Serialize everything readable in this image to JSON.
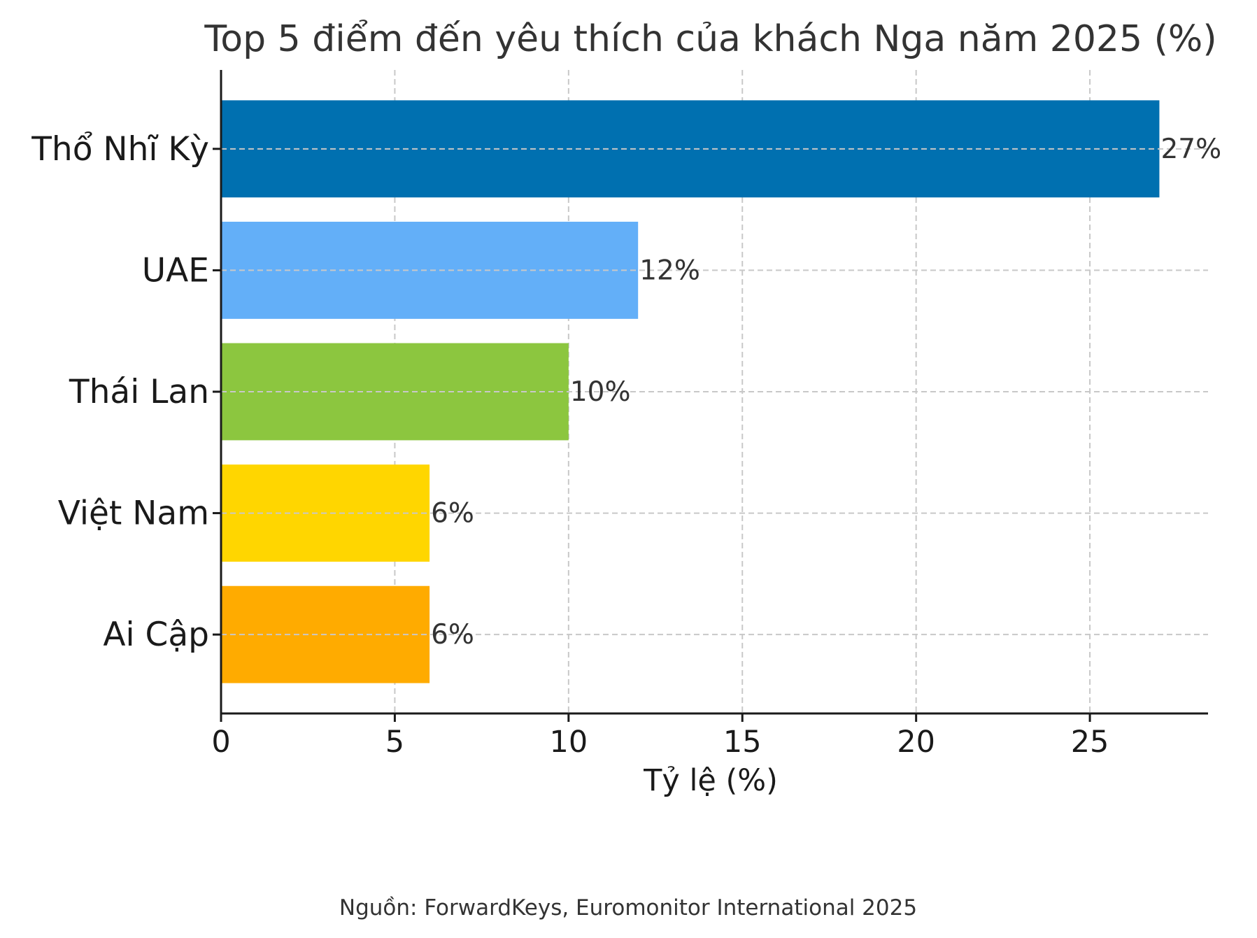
{
  "chart_data": {
    "type": "bar",
    "orientation": "horizontal",
    "title": "Top 5 điểm đến yêu thích của khách Nga năm 2025 (%)",
    "xlabel": "Tỷ lệ (%)",
    "ylabel": "",
    "categories": [
      "Thổ Nhĩ Kỳ",
      "UAE",
      "Thái Lan",
      "Việt Nam",
      "Ai Cập"
    ],
    "values": [
      27,
      12,
      10,
      6,
      6
    ],
    "value_labels": [
      "27%",
      "12%",
      "10%",
      "6%",
      "6%"
    ],
    "colors": [
      "#0070b0",
      "#63aff8",
      "#8cc63f",
      "#ffd600",
      "#ffab00"
    ],
    "xlim": [
      0,
      28.4
    ],
    "xticks": [
      "0",
      "5",
      "10",
      "15",
      "20",
      "25"
    ],
    "tick_values": [
      0,
      5,
      10,
      15,
      20,
      25
    ],
    "grid": true,
    "source": "Nguồn: ForwardKeys, Euromonitor International 2025"
  }
}
